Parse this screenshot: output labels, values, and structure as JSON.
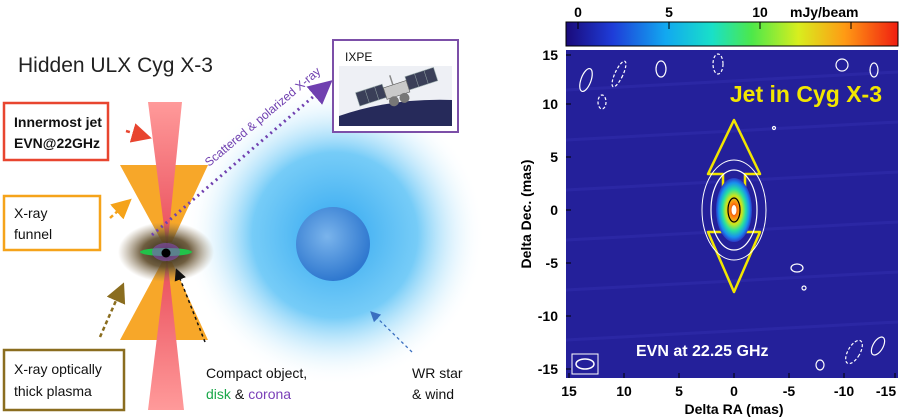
{
  "left_panel": {
    "title": "Hidden ULX Cyg X-3",
    "innermost_jet": {
      "line1": "Innermost jet",
      "line2": "EVN@22GHz",
      "color": "#e8452f"
    },
    "xray_funnel": {
      "line1": "X-ray",
      "line2": "funnel",
      "color": "#f5a31a"
    },
    "plasma": {
      "line1": "X-ray optically",
      "line2": "thick plasma",
      "color": "#8a6d1f"
    },
    "ixpe": {
      "label": "IXPE",
      "color": "#7c4fa8"
    },
    "scattered": {
      "text": "Scattered & polarized X-ray",
      "color": "#7040b0"
    },
    "compact": {
      "line1": "Compact object,",
      "disk": "disk",
      "amp": "&",
      "corona": "corona",
      "disk_color": "#1aa84a",
      "corona_color": "#7a3fb8"
    },
    "wr": {
      "line1": "WR star",
      "line2": "& wind"
    }
  },
  "right_panel": {
    "colorbar": {
      "ticks": [
        "0",
        "5",
        "10"
      ],
      "unit": "mJy/beam"
    },
    "title": "Jet in Cyg X-3",
    "caption": "EVN at 22.25 GHz",
    "xlabel": "Delta RA (mas)",
    "ylabel": "Delta Dec. (mas)",
    "xticks": [
      "15",
      "10",
      "5",
      "0",
      "-5",
      "-10",
      "-15"
    ],
    "yticks": [
      "15",
      "10",
      "5",
      "0",
      "-5",
      "-10",
      "-15"
    ],
    "colors": {
      "background": "#24209a",
      "arrow": "#f2e600",
      "title": "#f2e600"
    }
  }
}
